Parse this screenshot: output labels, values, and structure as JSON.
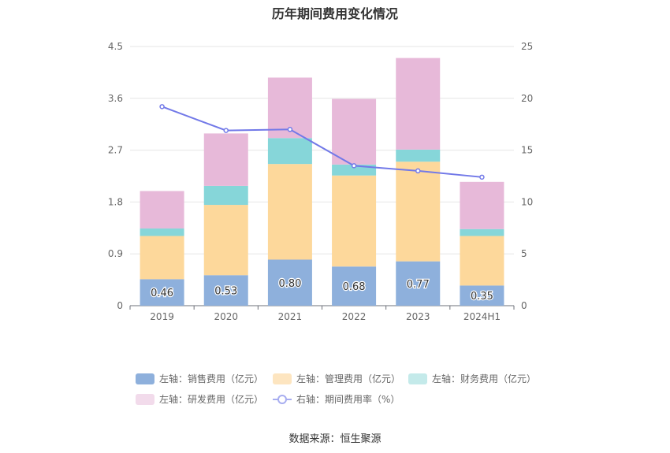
{
  "chart_data": {
    "type": "bar",
    "title": "历年期间费用变化情况",
    "categories": [
      "2019",
      "2020",
      "2021",
      "2022",
      "2023",
      "2024H1"
    ],
    "left_axis": {
      "ylim": [
        0,
        4.5
      ],
      "ticks": [
        "0",
        "0.9",
        "1.8",
        "2.7",
        "3.6",
        "4.5"
      ]
    },
    "right_axis": {
      "ylim": [
        0,
        25
      ],
      "ticks": [
        "0",
        "5",
        "10",
        "15",
        "20",
        "25"
      ]
    },
    "series": [
      {
        "name": "左轴：销售费用（亿元）",
        "axis": "left",
        "stack": "cost",
        "color": "#8eb0dc",
        "values": [
          0.46,
          0.53,
          0.8,
          0.68,
          0.77,
          0.35
        ],
        "labels": [
          "0.46",
          "0.53",
          "0.80",
          "0.68",
          "0.77",
          "0.35"
        ]
      },
      {
        "name": "左轴：管理费用（亿元）",
        "axis": "left",
        "stack": "cost",
        "color": "#fdd89b",
        "values": [
          0.75,
          1.22,
          1.66,
          1.58,
          1.73,
          0.86
        ]
      },
      {
        "name": "左轴：财务费用（亿元）",
        "axis": "left",
        "stack": "cost",
        "color": "#86d6d9",
        "values": [
          0.13,
          0.33,
          0.45,
          0.19,
          0.21,
          0.12
        ]
      },
      {
        "name": "左轴：研发费用（亿元）",
        "axis": "left",
        "stack": "cost",
        "color": "#e7b9d9",
        "values": [
          0.65,
          0.91,
          1.05,
          1.14,
          1.59,
          0.82
        ]
      },
      {
        "name": "右轴：期间费用率（%）",
        "axis": "right",
        "type": "line",
        "color": "#7279e8",
        "values": [
          19.2,
          16.9,
          17.0,
          13.5,
          13.0,
          12.4
        ]
      }
    ],
    "legend_position": "bottom",
    "grid": true
  },
  "legend": {
    "items": [
      {
        "label": "左轴：销售费用（亿元）",
        "color": "#8eb0dc",
        "kind": "box"
      },
      {
        "label": "左轴：管理费用（亿元）",
        "color": "#fde5c0",
        "kind": "box"
      },
      {
        "label": "左轴：财务费用（亿元）",
        "color": "#c4eaea",
        "kind": "box"
      },
      {
        "label": "左轴：研发费用（亿元）",
        "color": "#f2dbeb",
        "kind": "box"
      },
      {
        "label": "右轴：期间费用率（%）",
        "color": "#a7adf0",
        "kind": "line"
      }
    ]
  },
  "source": "数据来源：恒生聚源"
}
